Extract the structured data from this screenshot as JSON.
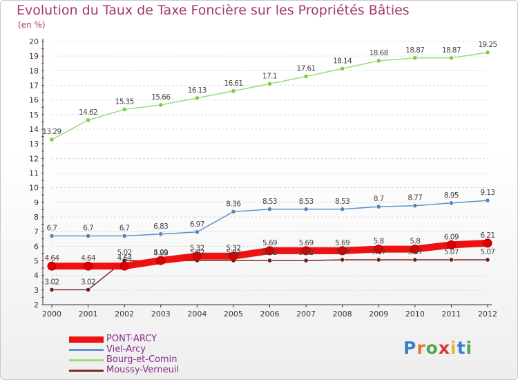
{
  "title": "Evolution du Taux de Taxe Foncière sur les Propriétés Bâties",
  "unit_label": "(en %)",
  "logo": {
    "text": "Proxiti",
    "letters": [
      "P",
      "r",
      "o",
      "x",
      "i",
      "t",
      "i"
    ],
    "colors": [
      "#3a7fd0",
      "#e8772a",
      "#4aa84a",
      "#d63a3a",
      "#e8b72a",
      "#3a7fd0",
      "#4aa84a"
    ]
  },
  "chart_data": {
    "type": "line",
    "title": "Evolution du Taux de Taxe Foncière sur les Propriétés Bâties",
    "ylabel": "(en %)",
    "xlabel": "",
    "ylim": [
      2,
      20
    ],
    "yticks": [
      2,
      3,
      4,
      5,
      6,
      7,
      8,
      9,
      10,
      11,
      12,
      13,
      14,
      15,
      16,
      17,
      18,
      19,
      20
    ],
    "categories": [
      "2000",
      "2001",
      "2002",
      "2003",
      "2004",
      "2005",
      "2006",
      "2007",
      "2008",
      "2009",
      "2010",
      "2011",
      "2012"
    ],
    "legend_position": "bottom-left",
    "series": [
      {
        "name": "PONT-ARCY",
        "color": "#ee1111",
        "marker": "#dd0000",
        "width": "thick",
        "values": [
          4.64,
          4.64,
          4.64,
          5.02,
          5.32,
          5.32,
          5.69,
          5.69,
          5.69,
          5.8,
          5.8,
          6.09,
          6.21
        ],
        "labels": [
          "4.64",
          "4.64",
          "4.64",
          "5.02",
          "5.32",
          "5.32",
          "5.69",
          "5.69",
          "5.69",
          "5.8",
          "5.8",
          "6.09",
          "6.21"
        ]
      },
      {
        "name": "Viel-Arcy",
        "color": "#5b95c9",
        "marker": "#4a86c0",
        "width": "thin",
        "values": [
          6.7,
          6.7,
          6.7,
          6.83,
          6.97,
          8.36,
          8.53,
          8.53,
          8.53,
          8.7,
          8.77,
          8.95,
          9.13
        ],
        "labels": [
          "6.7",
          "6.7",
          "6.7",
          "6.83",
          "6.97",
          "8.36",
          "8.53",
          "8.53",
          "8.53",
          "8.7",
          "8.77",
          "8.95",
          "9.13"
        ]
      },
      {
        "name": "Bourg-et-Comin",
        "color": "#99dd77",
        "marker": "#77cc44",
        "width": "thin",
        "values": [
          13.29,
          14.62,
          15.35,
          15.66,
          16.13,
          16.61,
          17.1,
          17.61,
          18.14,
          18.68,
          18.87,
          18.87,
          19.25
        ],
        "labels": [
          "13.29",
          "14.62",
          "15.35",
          "15.66",
          "16.13",
          "16.61",
          "17.1",
          "17.61",
          "18.14",
          "18.68",
          "18.87",
          "18.87",
          "19.25"
        ]
      },
      {
        "name": "Moussy-Verneuil",
        "color": "#7a2a2a",
        "marker": "#6a1a1a",
        "width": "thin",
        "values": [
          3.02,
          3.02,
          5.02,
          4.99,
          5.02,
          5.02,
          5.02,
          5.02,
          5.07,
          5.07,
          5.07,
          5.07,
          5.07
        ],
        "labels": [
          "3.02",
          "3.02",
          "5.02",
          "4.99",
          "5.02",
          "5.02",
          "5.02",
          "5.02",
          "5.07",
          "5.07",
          "5.07",
          "5.07",
          "5.07"
        ]
      }
    ]
  }
}
